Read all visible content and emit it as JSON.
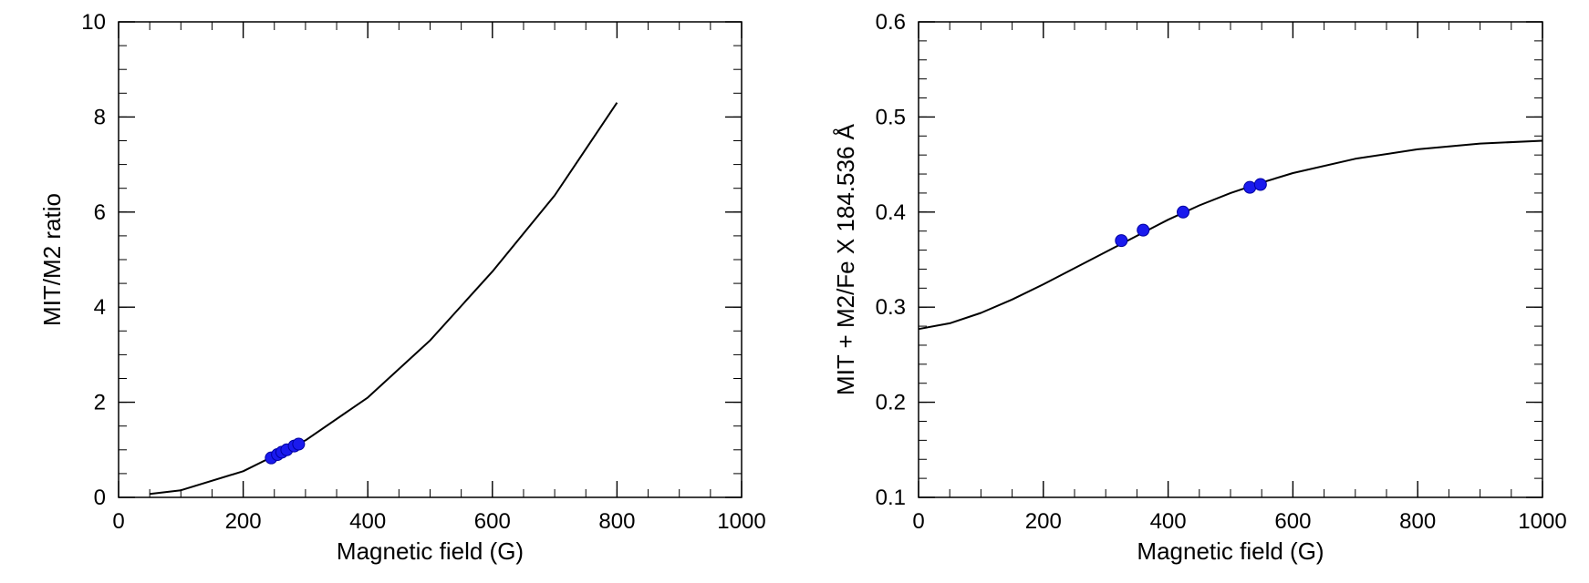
{
  "colors": {
    "curve": "#000000",
    "points": "#1a1aee",
    "axes": "#000000"
  },
  "chart_data": [
    {
      "type": "line",
      "xlabel": "Magnetic field (G)",
      "ylabel": "MIT/M2 ratio",
      "xlim": [
        0,
        1000
      ],
      "ylim": [
        0,
        10
      ],
      "xticks": [
        "0",
        "200",
        "400",
        "600",
        "800",
        "1000"
      ],
      "yticks": [
        "0",
        "2",
        "4",
        "6",
        "8",
        "10"
      ],
      "xtick_values": [
        0,
        200,
        400,
        600,
        800,
        1000
      ],
      "ytick_values": [
        0,
        2,
        4,
        6,
        8,
        10
      ],
      "x_minor_step": 50,
      "y_minor_step": 0.5,
      "series": [
        {
          "kind": "line",
          "x": [
            50,
            100,
            200,
            300,
            400,
            500,
            600,
            700,
            800
          ],
          "y": [
            0.07,
            0.15,
            0.55,
            1.2,
            2.1,
            3.3,
            4.75,
            6.35,
            8.3
          ]
        },
        {
          "kind": "scatter",
          "x": [
            245,
            255,
            262,
            270,
            282,
            289
          ],
          "y": [
            0.83,
            0.9,
            0.95,
            1.0,
            1.08,
            1.12
          ]
        }
      ],
      "grid": false
    },
    {
      "type": "line",
      "xlabel": "Magnetic field (G)",
      "ylabel": "MIT + M2/Fe X 184.536 Å",
      "xlim": [
        0,
        1000
      ],
      "ylim": [
        0.1,
        0.6
      ],
      "xticks": [
        "0",
        "200",
        "400",
        "600",
        "800",
        "1000"
      ],
      "yticks": [
        "0.1",
        "0.2",
        "0.3",
        "0.4",
        "0.5",
        "0.6"
      ],
      "xtick_values": [
        0,
        200,
        400,
        600,
        800,
        1000
      ],
      "ytick_values": [
        0.1,
        0.2,
        0.3,
        0.4,
        0.5,
        0.6
      ],
      "x_minor_step": 50,
      "y_minor_step": 0.02,
      "series": [
        {
          "kind": "line",
          "x": [
            0,
            50,
            100,
            150,
            200,
            250,
            300,
            350,
            400,
            450,
            500,
            550,
            600,
            700,
            800,
            900,
            1000
          ],
          "y": [
            0.277,
            0.283,
            0.294,
            0.308,
            0.324,
            0.341,
            0.358,
            0.375,
            0.392,
            0.407,
            0.42,
            0.431,
            0.441,
            0.456,
            0.466,
            0.472,
            0.475
          ]
        },
        {
          "kind": "scatter",
          "x": [
            325,
            360,
            424,
            531,
            548
          ],
          "y": [
            0.37,
            0.381,
            0.4,
            0.426,
            0.429
          ]
        }
      ],
      "grid": false
    }
  ]
}
